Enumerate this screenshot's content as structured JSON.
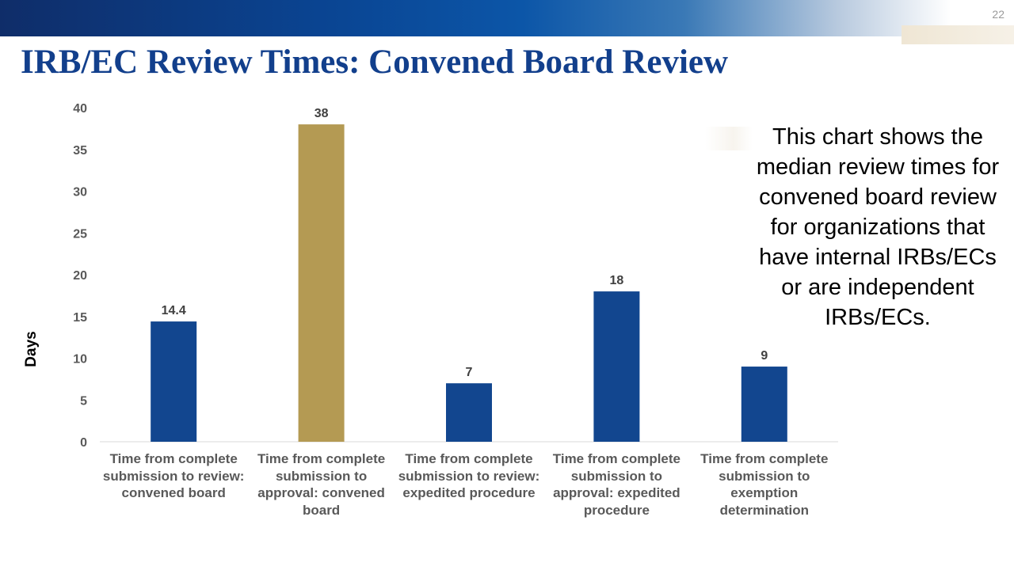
{
  "slide": {
    "number": "22",
    "title": "IRB/EC Review Times: Convened Board Review"
  },
  "note": {
    "text": "This chart shows the median review times for convened board review for organizations that have internal IRBs/ECs or are independent IRBs/ECs."
  },
  "colors": {
    "primary_bar": "#12468f",
    "highlight_bar": "#b49a53",
    "title": "#123f8c"
  },
  "chart_data": {
    "type": "bar",
    "title": "",
    "xlabel": "",
    "ylabel": "Days",
    "ylim": [
      0,
      40
    ],
    "yticks": [
      0,
      5,
      10,
      15,
      20,
      25,
      30,
      35,
      40
    ],
    "categories": [
      "Time from complete submission to review: convened board",
      "Time from complete submission to approval: convened board",
      "Time from complete submission to review: expedited procedure",
      "Time from complete submission to approval: expedited procedure",
      "Time from complete submission to exemption determination"
    ],
    "values": [
      14.4,
      38,
      7,
      18,
      9
    ],
    "data_labels": [
      "14.4",
      "38",
      "7",
      "18",
      "9"
    ],
    "highlight_index": 1,
    "grid": false
  }
}
